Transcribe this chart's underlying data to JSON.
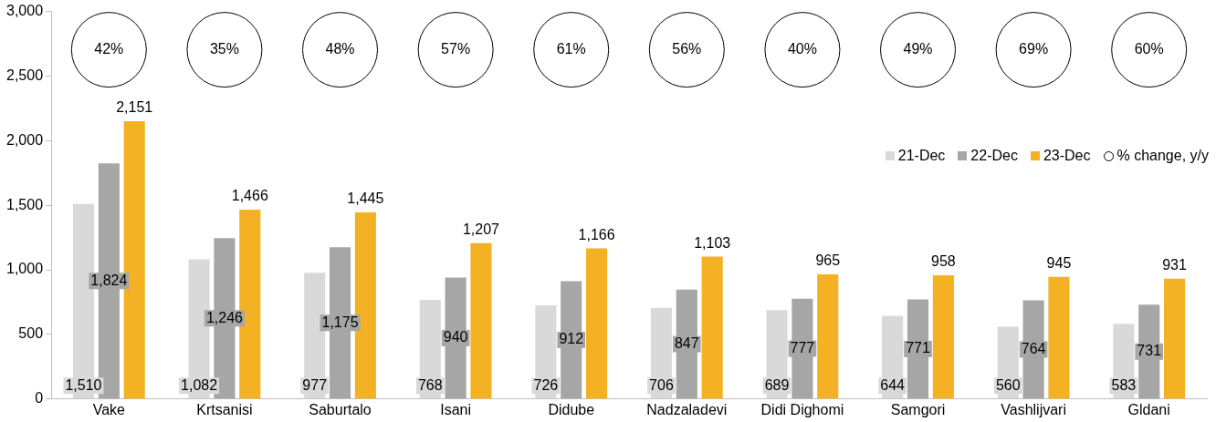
{
  "chart_data": {
    "type": "bar",
    "categories": [
      "Vake",
      "Krtsanisi",
      "Saburtalo",
      "Isani",
      "Didube",
      "Nadzaladevi",
      "Didi Dighomi",
      "Samgori",
      "Vashlijvari",
      "Gldani"
    ],
    "series": [
      {
        "name": "21-Dec",
        "color": "#d9d9d9",
        "values": [
          1510,
          1082,
          977,
          768,
          726,
          706,
          689,
          644,
          560,
          583
        ],
        "value_labels": [
          "1,510",
          "1,082",
          "977",
          "768",
          "726",
          "706",
          "689",
          "644",
          "560",
          "583"
        ]
      },
      {
        "name": "22-Dec",
        "color": "#a6a6a6",
        "values": [
          1824,
          1246,
          1175,
          940,
          912,
          847,
          777,
          771,
          764,
          731
        ],
        "value_labels": [
          "1,824",
          "1,246",
          "1,175",
          "940",
          "912",
          "847",
          "777",
          "771",
          "764",
          "731"
        ]
      },
      {
        "name": "23-Dec",
        "color": "#f4b123",
        "values": [
          2151,
          1466,
          1445,
          1207,
          1166,
          1103,
          965,
          958,
          945,
          931
        ],
        "value_labels": [
          "2,151",
          "1,466",
          "1,445",
          "1,207",
          "1,166",
          "1,103",
          "965",
          "958",
          "945",
          "931"
        ]
      },
      {
        "name": "% change, y/y",
        "type": "scatter",
        "marker": "circle",
        "color": "#000000",
        "values": [
          null,
          null,
          null,
          null,
          null,
          null,
          null,
          null,
          null,
          null
        ]
      }
    ],
    "annotations": [
      "42%",
      "35%",
      "48%",
      "57%",
      "61%",
      "56%",
      "40%",
      "49%",
      "69%",
      "60%"
    ],
    "ylim": [
      0,
      3000
    ],
    "yticks": [
      0,
      500,
      {
        "value": 1000,
        "label": "1,000"
      },
      {
        "value": 1500,
        "label": "1,500"
      },
      {
        "value": 2000,
        "label": "2,000"
      },
      {
        "value": 2500,
        "label": "2,500"
      },
      {
        "value": 3000,
        "label": "3,000"
      }
    ],
    "grid": false,
    "legend": "top right"
  }
}
